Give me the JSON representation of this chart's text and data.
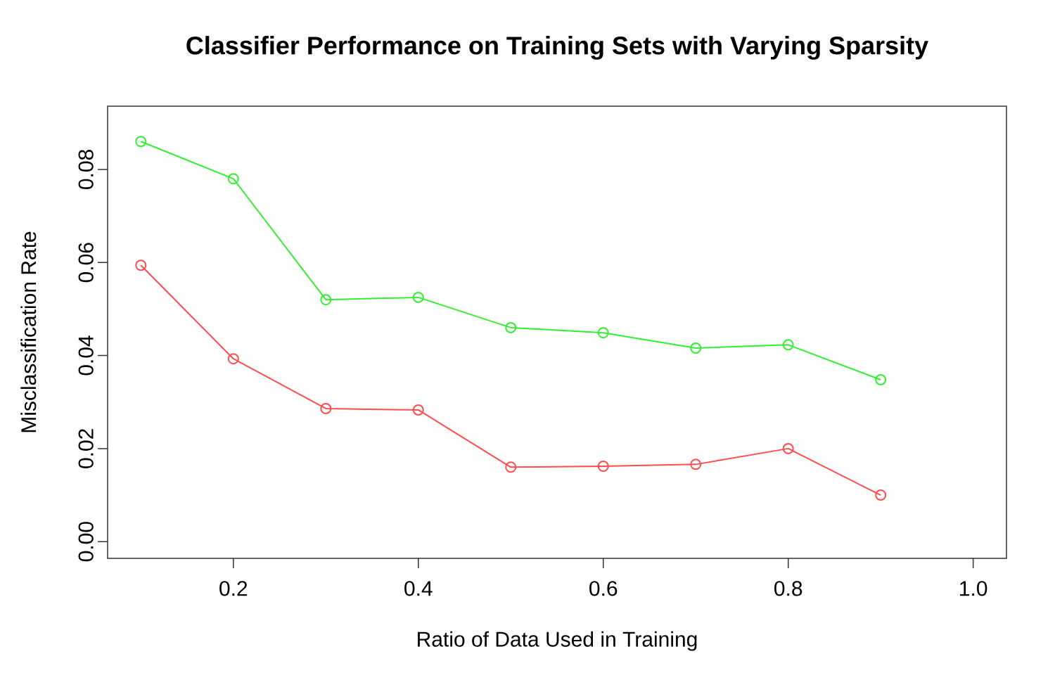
{
  "chart_data": {
    "type": "line",
    "title": "Classifier Performance on Training Sets with Varying Sparsity",
    "xlabel": "Ratio of Data Used in Training",
    "ylabel": "Misclassification Rate",
    "x": [
      0.1,
      0.2,
      0.3,
      0.4,
      0.5,
      0.6,
      0.7,
      0.8,
      0.9
    ],
    "series": [
      {
        "color": "#33ee33",
        "values": [
          0.086,
          0.078,
          0.052,
          0.0525,
          0.046,
          0.0449,
          0.0416,
          0.0423,
          0.0348
        ]
      },
      {
        "color": "#ff4d4d",
        "values": [
          0.0594,
          0.0393,
          0.0286,
          0.0283,
          0.016,
          0.0162,
          0.0166,
          0.02,
          0.01
        ]
      }
    ],
    "xlim": [
      0.064,
      1.036
    ],
    "ylim": [
      -0.0036,
      0.0936
    ],
    "xticks": [
      {
        "value": 0.2,
        "label": "0.2"
      },
      {
        "value": 0.4,
        "label": "0.4"
      },
      {
        "value": 0.6,
        "label": "0.6"
      },
      {
        "value": 0.8,
        "label": "0.8"
      },
      {
        "value": 1.0,
        "label": "1.0"
      }
    ],
    "yticks": [
      {
        "value": 0.0,
        "label": "0.00"
      },
      {
        "value": 0.02,
        "label": "0.02"
      },
      {
        "value": 0.04,
        "label": "0.04"
      },
      {
        "value": 0.06,
        "label": "0.06"
      },
      {
        "value": 0.08,
        "label": "0.08"
      }
    ],
    "grid": false,
    "marker": "circle",
    "line_style": "solid"
  }
}
